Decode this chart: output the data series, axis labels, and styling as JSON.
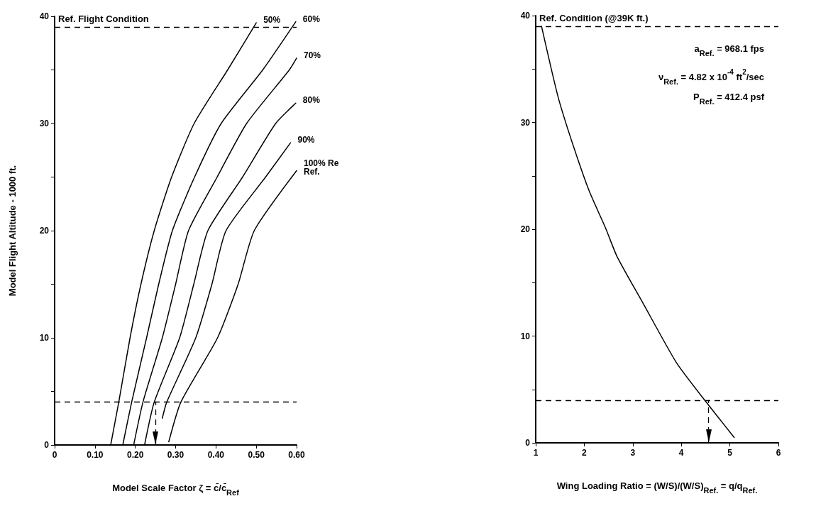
{
  "chart_data": [
    {
      "type": "line",
      "ylabel": "Model Flight Altitude - 1000 ft.",
      "xlabel": "Model Scale Factor ζ = c̄/c̄$_{Ref}$",
      "xlim": [
        0,
        0.6
      ],
      "xticks": [
        0,
        {
          "value": 0.1,
          "label": "0.10"
        },
        {
          "value": 0.2,
          "label": "0.20"
        },
        {
          "value": 0.3,
          "label": "0.30"
        },
        {
          "value": 0.4,
          "label": "0.40"
        },
        {
          "value": 0.5,
          "label": "0.50"
        },
        {
          "value": 0.6,
          "label": "0.60"
        }
      ],
      "ylim": [
        0,
        40
      ],
      "yticks": [
        0,
        {
          "value": 5,
          "label": null
        },
        10,
        {
          "value": 15,
          "label": null
        },
        20,
        {
          "value": 25,
          "label": null
        },
        30,
        {
          "value": 35,
          "label": null
        },
        40
      ],
      "grid": false,
      "legend": false,
      "marker": "none",
      "line_style": "solid",
      "series": [
        {
          "name": "50%",
          "color": "#000000",
          "x": [
            0.139,
            0.159,
            0.187,
            0.214,
            0.247,
            0.29,
            0.346,
            0.429,
            0.5
          ],
          "values": [
            0,
            4,
            10,
            15,
            20,
            25,
            30,
            35,
            39.4
          ]
        },
        {
          "name": "60%",
          "color": "#000000",
          "x": [
            0.169,
            0.191,
            0.228,
            0.258,
            0.292,
            0.347,
            0.413,
            0.516,
            0.598
          ],
          "values": [
            0,
            4,
            10,
            15,
            20,
            25,
            30,
            35,
            39.5
          ]
        },
        {
          "name": "70%",
          "color": "#000000",
          "x": [
            0.196,
            0.219,
            0.267,
            0.3,
            0.332,
            0.403,
            0.476,
            0.582,
            0.6
          ],
          "values": [
            0,
            4,
            10,
            15,
            20,
            25,
            30,
            35,
            36.1
          ]
        },
        {
          "name": "80%",
          "color": "#000000",
          "x": [
            0.223,
            0.247,
            0.31,
            0.345,
            0.38,
            0.466,
            0.548,
            0.598
          ],
          "values": [
            0,
            4,
            10,
            15,
            20,
            25,
            30,
            31.9
          ]
        },
        {
          "name": "90%",
          "color": "#000000",
          "x": [
            0.267,
            0.278,
            0.35,
            0.39,
            0.425,
            0.523,
            0.585
          ],
          "values": [
            2.5,
            4,
            10,
            15,
            20,
            25,
            28.2
          ]
        },
        {
          "name": "100% Re Ref.",
          "color": "#000000",
          "x": [
            0.283,
            0.313,
            0.404,
            0.455,
            0.495,
            0.6
          ],
          "values": [
            0.3,
            4,
            10,
            15,
            20,
            25.6
          ]
        }
      ],
      "ref_lines": [
        {
          "axis": "y",
          "value": 39,
          "label": "Ref. Flight Condition",
          "line_style": "dashed"
        },
        {
          "axis": "y",
          "value": 4,
          "line_style": "dashed"
        },
        {
          "axis": "x",
          "value": 0.25,
          "line_style": "dashed"
        }
      ]
    },
    {
      "type": "line",
      "xlabel": "Wing Loading Ratio = (W/S)/(W/S)$_{Ref.}$ = q/q$_{Ref.}$",
      "xlim": [
        1,
        6
      ],
      "xticks": [
        1,
        2,
        3,
        4,
        5,
        6
      ],
      "ylim": [
        0,
        40
      ],
      "yticks": [
        0,
        {
          "value": 5,
          "label": null
        },
        10,
        {
          "value": 15,
          "label": null
        },
        20,
        {
          "value": 25,
          "label": null
        },
        30,
        {
          "value": 35,
          "label": null
        },
        40
      ],
      "grid": false,
      "legend": false,
      "marker": "none",
      "line_style": "solid",
      "series": [
        {
          "color": "#000000",
          "x": [
            1.12,
            1.46,
            1.76,
            2.1,
            2.44,
            2.68,
            3.22,
            3.9,
            4.48,
            5.09
          ],
          "values": [
            39,
            32.4,
            28,
            23.6,
            20.1,
            17.4,
            13,
            7.5,
            4,
            0.5
          ]
        }
      ],
      "ref_lines": [
        {
          "axis": "y",
          "value": 39,
          "label": "Ref. Condition (@39K ft.)",
          "line_style": "dashed"
        },
        {
          "axis": "y",
          "value": 4,
          "line_style": "dashed"
        },
        {
          "axis": "x",
          "value": 4.56,
          "line_style": "dashed"
        }
      ],
      "annotations": [
        "a$_{Ref.}$ = 968.1 fps",
        "ν$_{Ref.}$ = 4.82 x 10$^{-4}$ ft$^{2}$/sec",
        "P$_{Ref.}$ = 412.4 psf"
      ]
    }
  ]
}
